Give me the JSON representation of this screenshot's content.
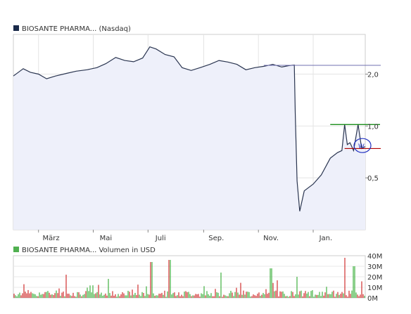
{
  "price_chart": {
    "legend_label": "BIOSANTE PHARMA... (Nasdaq)",
    "legend_color": "#1a2a4a",
    "line_color": "#2a3550",
    "fill_color": "#eef0fa",
    "y_ticks": [
      {
        "value": 2.0,
        "label": "2,0"
      },
      {
        "value": 1.0,
        "label": "1,0"
      },
      {
        "value": 0.5,
        "label": "0,5"
      }
    ],
    "x_ticks": [
      {
        "date": "2010-03",
        "label": "März"
      },
      {
        "date": "2010-05",
        "label": "Mai"
      },
      {
        "date": "2010-07",
        "label": "Juli"
      },
      {
        "date": "2010-09",
        "label": "Sep."
      },
      {
        "date": "2010-11",
        "label": "Nov."
      },
      {
        "date": "2011-01",
        "label": "Jan."
      }
    ],
    "annotations": {
      "resistance_line_color": "#7070b0",
      "upper_line_color": "#008000",
      "lower_line_color": "#b00000",
      "ellipse_color": "#2030c0",
      "ellipse_text": "W"
    }
  },
  "volume_chart": {
    "legend_label": "BIOSANTE PHARMA... Volumen in USD",
    "legend_color": "#50b050",
    "y_ticks": [
      {
        "value": 40,
        "label": "40M"
      },
      {
        "value": 30,
        "label": "30M"
      },
      {
        "value": 20,
        "label": "20M"
      },
      {
        "value": 10,
        "label": "10M"
      },
      {
        "value": 0,
        "label": "0M"
      }
    ]
  },
  "chart_data": [
    {
      "type": "line",
      "scale": "log",
      "ylim": [
        0.25,
        3.4
      ],
      "xlim": [
        "2010-02-01",
        "2011-02-28"
      ],
      "x": [
        "2010-02-01",
        "2010-02-12",
        "2010-02-20",
        "2010-03-01",
        "2010-03-10",
        "2010-03-20",
        "2010-04-01",
        "2010-04-12",
        "2010-04-24",
        "2010-05-05",
        "2010-05-15",
        "2010-05-26",
        "2010-06-05",
        "2010-06-15",
        "2010-06-25",
        "2010-07-03",
        "2010-07-10",
        "2010-07-20",
        "2010-07-30",
        "2010-08-08",
        "2010-08-18",
        "2010-08-28",
        "2010-09-08",
        "2010-09-18",
        "2010-09-28",
        "2010-10-08",
        "2010-10-18",
        "2010-10-28",
        "2010-11-07",
        "2010-11-17",
        "2010-11-27",
        "2010-12-05",
        "2010-12-11",
        "2010-12-12",
        "2010-12-14",
        "2010-12-17",
        "2010-12-22",
        "2011-01-01",
        "2011-01-10",
        "2011-01-20",
        "2011-01-28",
        "2011-02-02",
        "2011-02-05",
        "2011-02-08",
        "2011-02-11",
        "2011-02-15",
        "2011-02-20",
        "2011-02-24",
        "2011-02-28"
      ],
      "y": [
        1.95,
        2.15,
        2.05,
        2.0,
        1.88,
        1.95,
        2.02,
        2.08,
        2.12,
        2.18,
        2.3,
        2.5,
        2.4,
        2.36,
        2.48,
        2.88,
        2.8,
        2.6,
        2.52,
        2.18,
        2.1,
        2.18,
        2.28,
        2.4,
        2.35,
        2.28,
        2.12,
        2.18,
        2.22,
        2.28,
        2.2,
        2.24,
        2.26,
        1.2,
        0.48,
        0.32,
        0.42,
        0.46,
        0.52,
        0.65,
        0.7,
        0.72,
        1.02,
        0.78,
        0.8,
        0.72,
        1.02,
        0.74,
        0.76
      ]
    },
    {
      "type": "bar",
      "ylim": [
        0,
        40
      ],
      "xlim": [
        "2010-02-01",
        "2011-02-28"
      ],
      "values_seed": 7,
      "peaks": [
        {
          "date": "2010-04-01",
          "value": 22
        },
        {
          "date": "2010-05-18",
          "value": 18
        },
        {
          "date": "2010-07-05",
          "value": 34
        },
        {
          "date": "2010-07-25",
          "value": 36
        },
        {
          "date": "2010-09-20",
          "value": 24
        },
        {
          "date": "2010-11-15",
          "value": 28
        },
        {
          "date": "2010-12-14",
          "value": 20
        },
        {
          "date": "2011-02-05",
          "value": 38
        },
        {
          "date": "2011-02-15",
          "value": 30
        }
      ],
      "up_color": "#40b040",
      "down_color": "#d03030"
    }
  ]
}
